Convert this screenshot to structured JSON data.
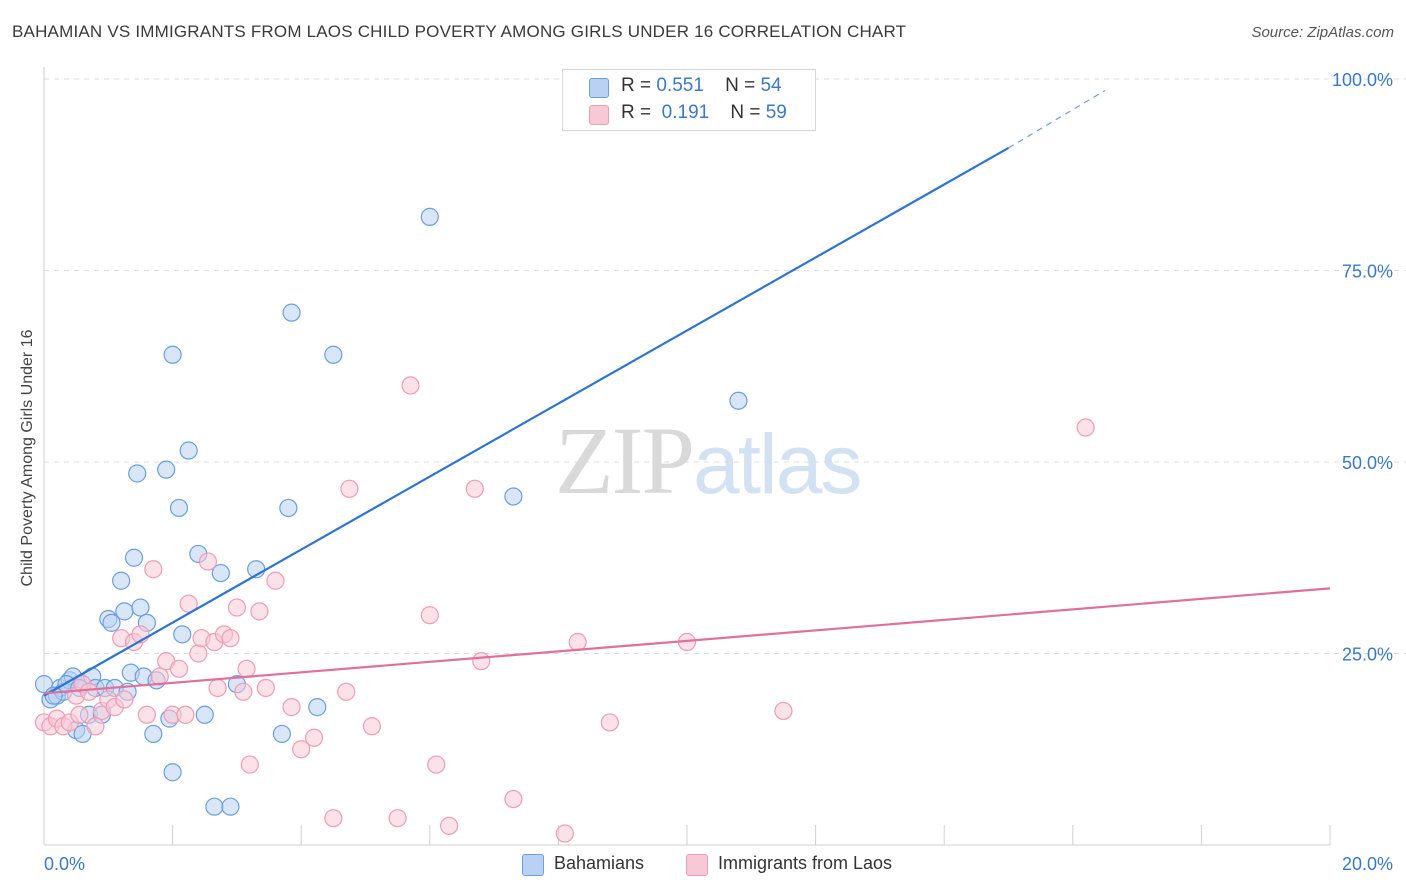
{
  "title": "BAHAMIAN VS IMMIGRANTS FROM LAOS CHILD POVERTY AMONG GIRLS UNDER 16 CORRELATION CHART",
  "source": "Source: ZipAtlas.com",
  "watermark": {
    "part1": "ZIP",
    "part2": "atlas"
  },
  "legend": {
    "rows": [
      {
        "r_label": "R =",
        "r_value": "0.551",
        "n_label": "N =",
        "n_value": "54"
      },
      {
        "r_label": "R =",
        "r_value": "0.191",
        "n_label": "N =",
        "n_value": "59"
      }
    ]
  },
  "bottom_legend": [
    "Bahamians",
    "Immigrants from Laos"
  ],
  "chart_data": {
    "type": "scatter",
    "title": "BAHAMIAN VS IMMIGRANTS FROM LAOS CHILD POVERTY AMONG GIRLS UNDER 16 CORRELATION CHART",
    "xlabel": "",
    "ylabel": "Child Poverty Among Girls Under 16",
    "xlim": [
      0,
      20
    ],
    "ylim": [
      0,
      100
    ],
    "x_tick_labels": [
      "0.0%",
      "20.0%"
    ],
    "y_tick_labels": [
      "25.0%",
      "50.0%",
      "75.0%",
      "100.0%"
    ],
    "y_ticks": [
      25,
      50,
      75,
      100
    ],
    "grid": true,
    "legend_position": "top-center",
    "series": [
      {
        "name": "Bahamians",
        "color": "#6a9fe0",
        "fill": "#b9d2f3",
        "line_color": "#2f74d0",
        "R": 0.551,
        "N": 54,
        "trend": {
          "x0": 0,
          "y0": 19.5,
          "x1": 15.0,
          "y1": 91.0,
          "dash_to_x": 16.5,
          "dash_to_y": 98.5
        },
        "points": [
          [
            0.0,
            21.0
          ],
          [
            0.1,
            19.0
          ],
          [
            0.2,
            19.5
          ],
          [
            0.25,
            20.5
          ],
          [
            0.3,
            20.0
          ],
          [
            0.4,
            21.5
          ],
          [
            0.45,
            22.0
          ],
          [
            0.5,
            15.0
          ],
          [
            0.6,
            14.5
          ],
          [
            0.6,
            21.0
          ],
          [
            0.7,
            17.0
          ],
          [
            0.75,
            22.0
          ],
          [
            0.8,
            20.5
          ],
          [
            0.9,
            17.0
          ],
          [
            0.95,
            20.5
          ],
          [
            1.0,
            29.5
          ],
          [
            1.05,
            29.0
          ],
          [
            1.1,
            20.5
          ],
          [
            1.2,
            34.5
          ],
          [
            1.25,
            30.5
          ],
          [
            1.3,
            20.0
          ],
          [
            1.35,
            22.5
          ],
          [
            1.4,
            37.5
          ],
          [
            1.45,
            48.5
          ],
          [
            1.5,
            31.0
          ],
          [
            1.55,
            22.0
          ],
          [
            1.6,
            29.0
          ],
          [
            1.7,
            14.5
          ],
          [
            1.75,
            21.5
          ],
          [
            1.9,
            49.0
          ],
          [
            1.95,
            16.5
          ],
          [
            2.0,
            9.5
          ],
          [
            2.0,
            64.0
          ],
          [
            2.1,
            44.0
          ],
          [
            2.15,
            27.5
          ],
          [
            2.25,
            51.5
          ],
          [
            2.4,
            38.0
          ],
          [
            2.5,
            17.0
          ],
          [
            2.65,
            5.0
          ],
          [
            2.75,
            35.5
          ],
          [
            2.9,
            5.0
          ],
          [
            3.0,
            21.0
          ],
          [
            3.3,
            36.0
          ],
          [
            3.7,
            14.5
          ],
          [
            3.8,
            44.0
          ],
          [
            3.85,
            69.5
          ],
          [
            4.25,
            18.0
          ],
          [
            4.5,
            64.0
          ],
          [
            6.0,
            82.0
          ],
          [
            7.3,
            45.5
          ],
          [
            10.8,
            58.0
          ],
          [
            0.15,
            19.5
          ],
          [
            0.35,
            21.0
          ],
          [
            0.55,
            20.5
          ]
        ]
      },
      {
        "name": "Immigrants from Laos",
        "color": "#ef9cb5",
        "fill": "#f7c8d6",
        "line_color": "#e0709a",
        "R": 0.191,
        "N": 59,
        "trend": {
          "x0": 0,
          "y0": 19.8,
          "x1": 20.0,
          "y1": 33.5
        },
        "points": [
          [
            0.0,
            16.0
          ],
          [
            0.1,
            15.5
          ],
          [
            0.2,
            16.5
          ],
          [
            0.3,
            15.5
          ],
          [
            0.4,
            16.0
          ],
          [
            0.5,
            19.5
          ],
          [
            0.55,
            17.0
          ],
          [
            0.6,
            21.0
          ],
          [
            0.7,
            20.0
          ],
          [
            0.8,
            15.5
          ],
          [
            0.9,
            17.5
          ],
          [
            1.0,
            19.0
          ],
          [
            1.1,
            18.0
          ],
          [
            1.2,
            27.0
          ],
          [
            1.25,
            19.0
          ],
          [
            1.4,
            26.5
          ],
          [
            1.5,
            27.5
          ],
          [
            1.6,
            17.0
          ],
          [
            1.7,
            36.0
          ],
          [
            1.8,
            22.0
          ],
          [
            1.9,
            24.0
          ],
          [
            2.0,
            17.0
          ],
          [
            2.1,
            23.0
          ],
          [
            2.2,
            17.0
          ],
          [
            2.25,
            31.5
          ],
          [
            2.4,
            25.0
          ],
          [
            2.45,
            27.0
          ],
          [
            2.55,
            37.0
          ],
          [
            2.65,
            26.5
          ],
          [
            2.7,
            20.5
          ],
          [
            2.8,
            27.5
          ],
          [
            2.9,
            27.0
          ],
          [
            3.0,
            31.0
          ],
          [
            3.1,
            20.0
          ],
          [
            3.15,
            23.0
          ],
          [
            3.2,
            10.5
          ],
          [
            3.35,
            30.5
          ],
          [
            3.45,
            20.5
          ],
          [
            3.6,
            34.5
          ],
          [
            3.85,
            18.0
          ],
          [
            4.0,
            12.5
          ],
          [
            4.2,
            14.0
          ],
          [
            4.5,
            3.5
          ],
          [
            4.75,
            46.5
          ],
          [
            4.7,
            20.0
          ],
          [
            5.1,
            15.5
          ],
          [
            5.5,
            3.5
          ],
          [
            5.7,
            60.0
          ],
          [
            6.0,
            30.0
          ],
          [
            6.1,
            10.5
          ],
          [
            6.3,
            2.5
          ],
          [
            6.7,
            46.5
          ],
          [
            6.8,
            24.0
          ],
          [
            7.3,
            6.0
          ],
          [
            8.1,
            1.5
          ],
          [
            8.3,
            26.5
          ],
          [
            8.8,
            16.0
          ],
          [
            10.0,
            26.5
          ],
          [
            11.5,
            17.5
          ]
        ],
        "extra_points": [
          [
            16.2,
            54.5
          ]
        ]
      }
    ]
  }
}
